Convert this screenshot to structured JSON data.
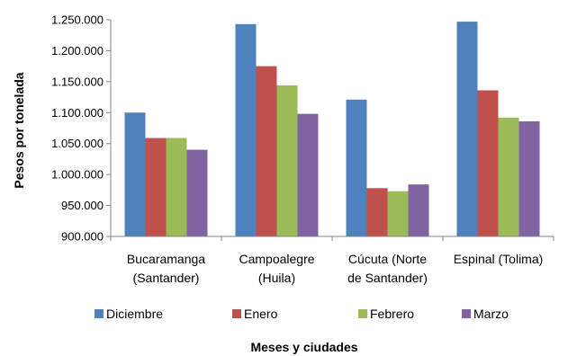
{
  "chart_data": {
    "type": "bar",
    "categories": [
      [
        "Bucaramanga",
        "(Santander)"
      ],
      [
        "Campoalegre",
        "(Huila)"
      ],
      [
        "Cúcuta (Norte",
        "de Santander)"
      ],
      [
        "Espinal (Tolima)"
      ]
    ],
    "series": [
      {
        "name": "Diciembre",
        "color": "#4F81BD",
        "values": [
          1100000,
          1243000,
          1121000,
          1247000
        ]
      },
      {
        "name": "Enero",
        "color": "#C0504D",
        "values": [
          1059000,
          1175000,
          978000,
          1136000
        ]
      },
      {
        "name": "Febrero",
        "color": "#9BBB59",
        "values": [
          1059000,
          1144000,
          973000,
          1092000
        ]
      },
      {
        "name": "Marzo",
        "color": "#8064A2",
        "values": [
          1040000,
          1098000,
          984000,
          1086000
        ]
      }
    ],
    "xlabel": "Meses y ciudades",
    "ylabel": "Pesos por tonelada",
    "ylim": [
      900000,
      1250000
    ],
    "yticks": [
      900000,
      950000,
      1000000,
      1050000,
      1100000,
      1150000,
      1200000,
      1250000
    ],
    "ytick_labels": [
      "900.000",
      "950.000",
      "1.000.000",
      "1.050.000",
      "1.100.000",
      "1.150.000",
      "1.200.000",
      "1.250.000"
    ],
    "grid": false,
    "legend_position": "bottom"
  }
}
